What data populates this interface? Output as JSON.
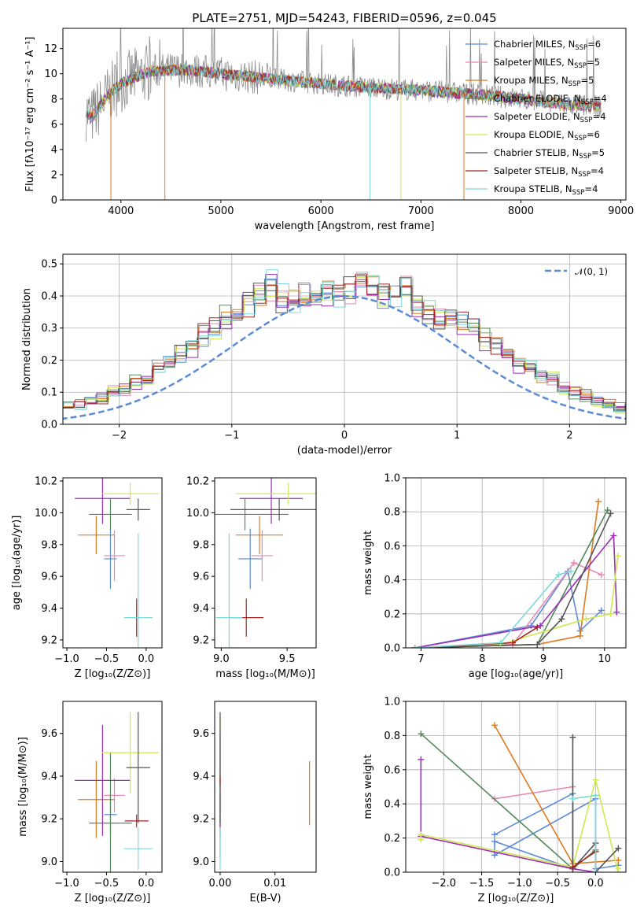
{
  "colors": [
    "#5b8ad6",
    "#e589b5",
    "#de7a1f",
    "#548a5a",
    "#9a2fb4",
    "#cfe84f",
    "#555555",
    "#a52323",
    "#7dd8dc"
  ],
  "chart_data": [
    {
      "type": "line",
      "title": "PLATE=2751, MJD=54243, FIBERID=0596, z=0.045",
      "xlabel": "wavelength [Angstrom, rest frame]",
      "ylabel": "Flux [fλ10⁻¹⁷ erg cm⁻² s⁻¹ A⁻¹]",
      "xlim": [
        3420,
        9050
      ],
      "ylim": [
        0,
        13.6
      ],
      "xticks": [
        4000,
        5000,
        6000,
        7000,
        8000,
        9000
      ],
      "yticks": [
        0,
        2,
        4,
        6,
        8,
        10,
        12
      ],
      "grid": false,
      "legend_position": "top-right",
      "spectrum_anchors": {
        "x": [
          3650,
          3700,
          3800,
          3900,
          4000,
          4100,
          4300,
          4500,
          4700,
          5000,
          5500,
          6000,
          6500,
          7000,
          7500,
          8000,
          8400,
          8800
        ],
        "y": [
          7.0,
          6.5,
          7.5,
          8.6,
          9.2,
          9.6,
          10.2,
          10.3,
          10.3,
          10.0,
          9.6,
          9.2,
          8.9,
          8.7,
          8.4,
          8.0,
          7.6,
          7.4
        ]
      },
      "series": [
        {
          "name": "Chabrier MILES, N_SSP=6"
        },
        {
          "name": "Salpeter MILES, N_SSP=5"
        },
        {
          "name": "Kroupa MILES, N_SSP=5"
        },
        {
          "name": "Chabrier ELODIE, N_SSP=4"
        },
        {
          "name": "Salpeter ELODIE, N_SSP=4"
        },
        {
          "name": "Kroupa ELODIE, N_SSP=6"
        },
        {
          "name": "Chabrier STELIB, N_SSP=5"
        },
        {
          "name": "Salpeter STELIB, N_SSP=4"
        },
        {
          "name": "Kroupa STELIB, N_SSP=4"
        }
      ],
      "drops": [
        {
          "x": 3900,
          "color_index": 2
        },
        {
          "x": 4440,
          "color_index": 2
        },
        {
          "x": 6490,
          "color_index": 8
        },
        {
          "x": 6800,
          "color_index": 5
        },
        {
          "x": 7430,
          "color_index": 2
        }
      ]
    },
    {
      "type": "histogram",
      "xlabel": "(data-model)/error",
      "ylabel": "Normed distribution",
      "xlim": [
        -2.5,
        2.5
      ],
      "ylim": [
        0,
        0.53
      ],
      "xticks": [
        -2,
        -1,
        0,
        1,
        2
      ],
      "yticks": [
        0.0,
        0.1,
        0.2,
        0.3,
        0.4,
        0.5
      ],
      "grid": true,
      "legend": [
        "𝒩(0, 1)"
      ],
      "legend_position": "top-right",
      "bin_width": 0.1,
      "base_values": [
        0.02,
        0.03,
        0.03,
        0.04,
        0.05,
        0.06,
        0.06,
        0.07,
        0.08,
        0.1,
        0.11,
        0.13,
        0.14,
        0.17,
        0.19,
        0.22,
        0.24,
        0.28,
        0.3,
        0.33,
        0.35,
        0.38,
        0.4,
        0.43,
        0.39,
        0.38,
        0.41,
        0.4,
        0.42,
        0.4,
        0.42,
        0.46,
        0.43,
        0.4,
        0.39,
        0.43,
        0.37,
        0.35,
        0.33,
        0.33,
        0.31,
        0.31,
        0.27,
        0.25,
        0.22,
        0.19,
        0.17,
        0.15,
        0.14,
        0.11,
        0.1,
        0.09,
        0.07,
        0.06,
        0.05,
        0.05,
        0.04,
        0.04,
        0.03,
        0.02
      ]
    },
    {
      "type": "scatter",
      "subtype": "errorbar",
      "xlabel": "Z [log₁₀(Z/Z⊙)]",
      "ylabel": "age [log₁₀(age/yr)]",
      "xlim": [
        -1.05,
        0.2
      ],
      "ylim": [
        9.15,
        10.22
      ],
      "xticks": [
        -1.0,
        -0.5,
        0.0
      ],
      "yticks": [
        9.2,
        9.4,
        9.6,
        9.8,
        10.0,
        10.2
      ],
      "points": [
        {
          "x": -0.45,
          "y": 9.71,
          "xerr": 0.08,
          "yerr": 0.19,
          "c": 0
        },
        {
          "x": -0.4,
          "y": 9.73,
          "xerr": 0.13,
          "yerr": 0.16,
          "c": 1
        },
        {
          "x": -0.63,
          "y": 9.86,
          "xerr": 0.23,
          "yerr": 0.12,
          "c": 2
        },
        {
          "x": -0.45,
          "y": 9.99,
          "xerr": 0.27,
          "yerr": 0.1,
          "c": 3
        },
        {
          "x": -0.55,
          "y": 10.09,
          "xerr": 0.35,
          "yerr": 0.16,
          "c": 4
        },
        {
          "x": -0.2,
          "y": 10.12,
          "xerr": 0.36,
          "yerr": 0.07,
          "c": 5
        },
        {
          "x": -0.1,
          "y": 10.02,
          "xerr": 0.15,
          "yerr": 0.07,
          "c": 6
        },
        {
          "x": -0.12,
          "y": 9.34,
          "xerr": 0.04,
          "yerr": 0.12,
          "c": 7
        },
        {
          "x": -0.1,
          "y": 9.34,
          "xerr": 0.18,
          "yerr": 0.53,
          "c": 8
        }
      ]
    },
    {
      "type": "scatter",
      "subtype": "errorbar",
      "xlabel": "mass [log₁₀(M/M⊙)]",
      "ylabel": "",
      "xlim": [
        8.95,
        9.72
      ],
      "ylim": [
        9.15,
        10.22
      ],
      "xticks": [
        9.0,
        9.5
      ],
      "yticks": [
        9.2,
        9.4,
        9.6,
        9.8,
        10.0,
        10.2
      ],
      "points": [
        {
          "x": 9.22,
          "y": 9.71,
          "xerr": 0.09,
          "yerr": 0.19,
          "c": 0
        },
        {
          "x": 9.31,
          "y": 9.73,
          "xerr": 0.08,
          "yerr": 0.16,
          "c": 1
        },
        {
          "x": 9.29,
          "y": 9.86,
          "xerr": 0.18,
          "yerr": 0.12,
          "c": 2
        },
        {
          "x": 9.18,
          "y": 9.99,
          "xerr": 0.33,
          "yerr": 0.1,
          "c": 3
        },
        {
          "x": 9.38,
          "y": 10.09,
          "xerr": 0.24,
          "yerr": 0.16,
          "c": 4
        },
        {
          "x": 9.51,
          "y": 10.12,
          "xerr": 0.4,
          "yerr": 0.07,
          "c": 5
        },
        {
          "x": 9.44,
          "y": 10.02,
          "xerr": 0.37,
          "yerr": 0.07,
          "c": 6
        },
        {
          "x": 9.19,
          "y": 9.34,
          "xerr": 0.13,
          "yerr": 0.12,
          "c": 7
        },
        {
          "x": 9.06,
          "y": 9.34,
          "xerr": 0.1,
          "yerr": 0.53,
          "c": 8
        }
      ]
    },
    {
      "type": "line",
      "xlabel": "age [log₁₀(age/yr)]",
      "ylabel": "mass weight",
      "xlim": [
        6.75,
        10.35
      ],
      "ylim": [
        0,
        1.0
      ],
      "xticks": [
        7,
        8,
        9,
        10
      ],
      "yticks": [
        0.0,
        0.2,
        0.4,
        0.6,
        0.8,
        1.0
      ],
      "grid": true,
      "series": [
        {
          "c": 0,
          "x": [
            6.9,
            8.8,
            9.4,
            9.6,
            9.95
          ],
          "y": [
            0.0,
            0.13,
            0.45,
            0.1,
            0.22
          ]
        },
        {
          "c": 1,
          "x": [
            6.9,
            8.5,
            9.5,
            9.95
          ],
          "y": [
            0.0,
            0.02,
            0.5,
            0.43
          ]
        },
        {
          "c": 2,
          "x": [
            6.9,
            8.9,
            9.6,
            9.9
          ],
          "y": [
            0.0,
            0.02,
            0.07,
            0.86
          ]
        },
        {
          "c": 3,
          "x": [
            6.9,
            8.9,
            10.05
          ],
          "y": [
            0.0,
            0.02,
            0.81
          ]
        },
        {
          "c": 4,
          "x": [
            6.9,
            8.95,
            10.15,
            10.2
          ],
          "y": [
            0.0,
            0.13,
            0.66,
            0.21
          ]
        },
        {
          "c": 5,
          "x": [
            6.9,
            8.3,
            9.7,
            10.1,
            10.22
          ],
          "y": [
            0.0,
            0.02,
            0.17,
            0.2,
            0.54
          ]
        },
        {
          "c": 6,
          "x": [
            6.9,
            8.9,
            9.3,
            10.1
          ],
          "y": [
            0.0,
            0.02,
            0.17,
            0.79
          ]
        },
        {
          "c": 7,
          "x": [
            6.9,
            8.5,
            8.9
          ],
          "y": [
            0.0,
            0.03,
            0.12
          ]
        },
        {
          "c": 8,
          "x": [
            6.9,
            8.3,
            9.25,
            9.45
          ],
          "y": [
            0.0,
            0.03,
            0.43,
            0.45
          ]
        }
      ]
    },
    {
      "type": "scatter",
      "subtype": "errorbar",
      "xlabel": "Z [log₁₀(Z/Z⊙)]",
      "ylabel": "mass [log₁₀(M/M⊙)]",
      "xlim": [
        -1.05,
        0.2
      ],
      "ylim": [
        8.95,
        9.75
      ],
      "xticks": [
        -1.0,
        -0.5,
        0.0
      ],
      "yticks": [
        9.0,
        9.2,
        9.4,
        9.6
      ],
      "points": [
        {
          "x": -0.45,
          "y": 9.22,
          "xerr": 0.08,
          "yerr": 0.09,
          "c": 0
        },
        {
          "x": -0.4,
          "y": 9.31,
          "xerr": 0.13,
          "yerr": 0.08,
          "c": 1
        },
        {
          "x": -0.63,
          "y": 9.29,
          "xerr": 0.23,
          "yerr": 0.18,
          "c": 2
        },
        {
          "x": -0.45,
          "y": 9.18,
          "xerr": 0.27,
          "yerr": 0.33,
          "c": 3
        },
        {
          "x": -0.55,
          "y": 9.38,
          "xerr": 0.35,
          "yerr": 0.26,
          "c": 4
        },
        {
          "x": -0.2,
          "y": 9.51,
          "xerr": 0.36,
          "yerr": 0.19,
          "c": 5
        },
        {
          "x": -0.1,
          "y": 9.44,
          "xerr": 0.15,
          "yerr": 0.26,
          "c": 6
        },
        {
          "x": -0.12,
          "y": 9.19,
          "xerr": 0.15,
          "yerr": 0.03,
          "c": 7
        },
        {
          "x": -0.1,
          "y": 9.06,
          "xerr": 0.18,
          "yerr": 0.1,
          "c": 8
        }
      ]
    },
    {
      "type": "scatter",
      "subtype": "errorbar",
      "xlabel": "E(B-V)",
      "ylabel": "",
      "xlim": [
        -0.001,
        0.0175
      ],
      "ylim": [
        8.95,
        9.75
      ],
      "xticks": [
        0.0,
        0.01
      ],
      "yticks": [
        9.0,
        9.2,
        9.4,
        9.6
      ],
      "points": [
        {
          "x": 0.0,
          "y": 9.22,
          "xerr": 0,
          "yerr": 0.1,
          "c": 0
        },
        {
          "x": 0.0,
          "y": 9.31,
          "xerr": 0,
          "yerr": 0.08,
          "c": 1
        },
        {
          "x": 0.0163,
          "y": 9.32,
          "xerr": 0,
          "yerr": 0.15,
          "c": 2
        },
        {
          "x": 0.0,
          "y": 9.35,
          "xerr": 0,
          "yerr": 0.33,
          "c": 3
        },
        {
          "x": 0.0,
          "y": 9.38,
          "xerr": 0,
          "yerr": 0.22,
          "c": 4
        },
        {
          "x": 0.0,
          "y": 9.45,
          "xerr": 0,
          "yerr": 0.25,
          "c": 5
        },
        {
          "x": 0.0,
          "y": 9.44,
          "xerr": 0,
          "yerr": 0.26,
          "c": 6
        },
        {
          "x": 0.0,
          "y": 9.38,
          "xerr": 0,
          "yerr": 0.02,
          "c": 7
        },
        {
          "x": 0.0,
          "y": 9.06,
          "xerr": 0,
          "yerr": 0.1,
          "c": 8
        }
      ]
    },
    {
      "type": "line",
      "xlabel": "Z [log₁₀(Z/Z⊙)]",
      "ylabel": "mass weight",
      "xlim": [
        -2.5,
        0.4
      ],
      "ylim": [
        0,
        1.0
      ],
      "xticks": [
        -2.0,
        -1.5,
        -1.0,
        -0.5,
        0.0
      ],
      "yticks": [
        0.0,
        0.2,
        0.4,
        0.6,
        0.8,
        1.0
      ],
      "grid": true,
      "series": [
        {
          "c": 0,
          "x": [
            -1.33,
            -0.3,
            -0.3,
            -1.33,
            -1.33,
            0.0,
            0.0,
            0.3
          ],
          "y": [
            0.22,
            0.46,
            0.02,
            0.18,
            0.1,
            0.43,
            0.02,
            0.04
          ]
        },
        {
          "c": 1,
          "x": [
            -1.33,
            -0.3
          ],
          "y": [
            0.43,
            0.5
          ]
        },
        {
          "c": 2,
          "x": [
            -1.33,
            -0.3,
            0.3
          ],
          "y": [
            0.86,
            0.05,
            0.07
          ]
        },
        {
          "c": 3,
          "x": [
            -2.3,
            -0.3,
            0.0
          ],
          "y": [
            0.81,
            0.02,
            0.13
          ]
        },
        {
          "c": 4,
          "x": [
            -2.3,
            -2.3,
            -0.3,
            0.0
          ],
          "y": [
            0.66,
            0.21,
            0.02,
            0.0
          ]
        },
        {
          "c": 5,
          "x": [
            -2.3,
            -2.3,
            -0.3,
            0.0,
            0.3,
            0.3
          ],
          "y": [
            0.19,
            0.22,
            0.03,
            0.54,
            0.0,
            0.02
          ]
        },
        {
          "c": 6,
          "x": [
            -0.3,
            -0.3,
            0.0,
            0.0,
            0.3
          ],
          "y": [
            0.79,
            0.02,
            0.17,
            0.0,
            0.14
          ]
        },
        {
          "c": 7,
          "x": [
            -0.3,
            0.0
          ],
          "y": [
            0.03,
            0.12
          ]
        },
        {
          "c": 8,
          "x": [
            -0.3,
            0.0,
            0.0
          ],
          "y": [
            0.43,
            0.45,
            0.0
          ]
        }
      ]
    }
  ]
}
